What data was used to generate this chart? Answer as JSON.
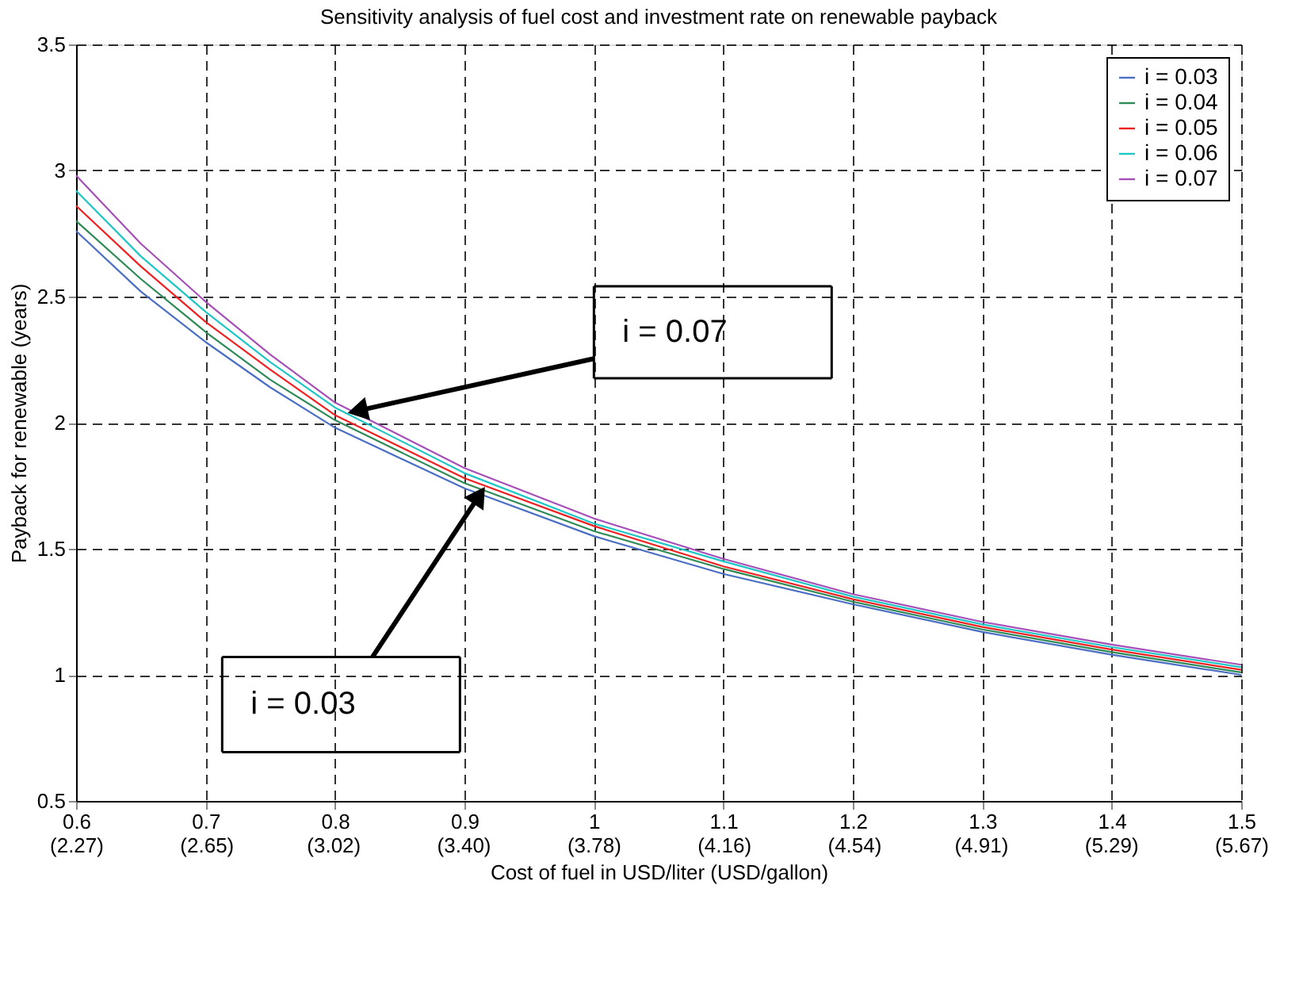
{
  "chart_data": {
    "type": "line",
    "title": "Sensitivity analysis of fuel cost and investment rate on renewable payback",
    "xlabel": "Cost of fuel in USD/liter (USD/gallon)",
    "ylabel": "Payback for renewable (years)",
    "x": [
      0.6,
      0.65,
      0.7,
      0.75,
      0.8,
      0.9,
      1.0,
      1.1,
      1.2,
      1.3,
      1.4,
      1.5
    ],
    "series": [
      {
        "name": "i = 0.03",
        "color": "#4b6fc4",
        "values": [
          2.76,
          2.52,
          2.32,
          2.14,
          1.98,
          1.74,
          1.55,
          1.4,
          1.28,
          1.17,
          1.08,
          1.0
        ]
      },
      {
        "name": "i = 0.04",
        "color": "#2e8b57",
        "values": [
          2.8,
          2.57,
          2.36,
          2.17,
          2.01,
          1.76,
          1.57,
          1.42,
          1.29,
          1.18,
          1.09,
          1.01
        ]
      },
      {
        "name": "i = 0.05",
        "color": "#ee2222",
        "values": [
          2.86,
          2.62,
          2.4,
          2.21,
          2.03,
          1.78,
          1.59,
          1.43,
          1.3,
          1.19,
          1.1,
          1.02
        ]
      },
      {
        "name": "i = 0.06",
        "color": "#1fc6c6",
        "values": [
          2.92,
          2.66,
          2.44,
          2.24,
          2.06,
          1.8,
          1.6,
          1.45,
          1.31,
          1.2,
          1.11,
          1.03
        ]
      },
      {
        "name": "i = 0.07",
        "color": "#a64fb8",
        "values": [
          2.98,
          2.71,
          2.48,
          2.27,
          2.08,
          1.82,
          1.62,
          1.46,
          1.32,
          1.21,
          1.12,
          1.04
        ]
      }
    ],
    "xlim": [
      0.6,
      1.5
    ],
    "xticks": [
      0.6,
      0.7,
      0.8,
      0.9,
      1,
      1.1,
      1.2,
      1.3,
      1.4,
      1.5
    ],
    "x2lim": [
      2.27,
      5.67
    ],
    "x2ticks": [
      {
        "value": 2.27,
        "label": "(2.27)"
      },
      {
        "value": 2.65,
        "label": "(2.65)"
      },
      {
        "value": 3.02,
        "label": "(3.02)"
      },
      {
        "value": 3.4,
        "label": "(3.40)"
      },
      {
        "value": 3.78,
        "label": "(3.78)"
      },
      {
        "value": 4.16,
        "label": "(4.16)"
      },
      {
        "value": 4.54,
        "label": "(4.54)"
      },
      {
        "value": 4.91,
        "label": "(4.91)"
      },
      {
        "value": 5.29,
        "label": "(5.29)"
      },
      {
        "value": 5.67,
        "label": "(5.67)"
      }
    ],
    "ylim": [
      0.5,
      3.5
    ],
    "yticks": [
      0.5,
      1,
      1.5,
      2,
      2.5,
      3,
      3.5
    ],
    "annotations": [
      {
        "text": "i = 0.07",
        "x": 0.82,
        "y": 2.05
      },
      {
        "text": "i = 0.03",
        "x": 0.91,
        "y": 1.7
      }
    ],
    "grid": true,
    "legend": "top right"
  }
}
